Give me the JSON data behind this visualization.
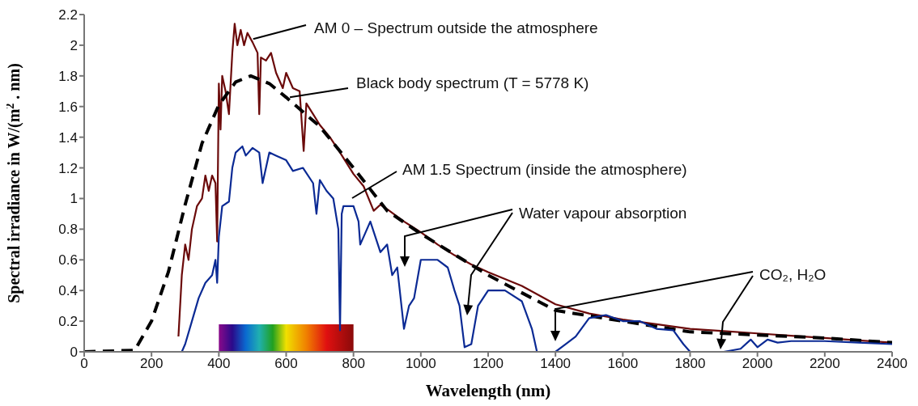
{
  "chart_data": {
    "type": "line",
    "xlabel": "Wavelength (nm)",
    "ylabel": "Spectral irradiance in W/(m$^{2}$ . nm)",
    "xlim": [
      0,
      2400
    ],
    "xticks": [
      0,
      200,
      400,
      600,
      800,
      1000,
      1200,
      1400,
      1600,
      1800,
      2000,
      2200,
      2400
    ],
    "ylim": [
      0,
      2.2
    ],
    "yticks": [
      0,
      0.2,
      0.4,
      0.6,
      0.8,
      1,
      1.2,
      1.4,
      1.6,
      1.8,
      2,
      2.2
    ],
    "series": [
      {
        "color": "#6b0a0a",
        "line_style": "solid",
        "x": [
          280,
          290,
          300,
          310,
          320,
          335,
          350,
          360,
          370,
          380,
          390,
          395,
          400,
          405,
          410,
          420,
          430,
          440,
          447,
          455,
          465,
          475,
          485,
          500,
          515,
          520,
          525,
          540,
          555,
          570,
          590,
          600,
          620,
          640,
          652,
          660,
          680,
          700,
          730,
          760,
          800,
          830,
          860,
          880,
          900,
          950,
          1000,
          1050,
          1100,
          1150,
          1200,
          1300,
          1400,
          1500,
          1600,
          1700,
          1800,
          1900,
          2000,
          2100,
          2200,
          2300,
          2400
        ],
        "values": [
          0.1,
          0.5,
          0.7,
          0.6,
          0.8,
          0.95,
          1.0,
          1.15,
          1.05,
          1.15,
          1.1,
          0.72,
          1.75,
          1.45,
          1.8,
          1.7,
          1.55,
          1.95,
          2.14,
          2.0,
          2.1,
          2.0,
          2.08,
          2.02,
          1.95,
          1.55,
          1.92,
          1.9,
          1.95,
          1.82,
          1.72,
          1.82,
          1.72,
          1.7,
          1.31,
          1.62,
          1.55,
          1.48,
          1.4,
          1.3,
          1.16,
          1.08,
          0.92,
          0.96,
          0.93,
          0.85,
          0.78,
          0.7,
          0.63,
          0.57,
          0.52,
          0.43,
          0.31,
          0.25,
          0.21,
          0.18,
          0.15,
          0.135,
          0.12,
          0.105,
          0.09,
          0.075,
          0.06
        ]
      },
      {
        "color": "#000000",
        "line_style": "dashed",
        "x": [
          0,
          150,
          200,
          250,
          300,
          350,
          400,
          450,
          495,
          550,
          600,
          700,
          800,
          900,
          1000,
          1200,
          1400,
          1600,
          1800,
          2000,
          2200,
          2400
        ],
        "values": [
          0,
          0.01,
          0.2,
          0.52,
          0.96,
          1.36,
          1.61,
          1.76,
          1.8,
          1.75,
          1.66,
          1.47,
          1.2,
          0.92,
          0.77,
          0.5,
          0.27,
          0.2,
          0.13,
          0.11,
          0.09,
          0.06
        ]
      },
      {
        "color": "#0b2a94",
        "line_style": "solid",
        "x": [
          290,
          300,
          320,
          340,
          360,
          380,
          390,
          395,
          400,
          410,
          430,
          440,
          450,
          470,
          480,
          500,
          520,
          530,
          550,
          570,
          600,
          620,
          650,
          680,
          690,
          700,
          720,
          740,
          755,
          760,
          765,
          770,
          800,
          815,
          820,
          850,
          880,
          900,
          915,
          930,
          950,
          965,
          980,
          1000,
          1050,
          1080,
          1100,
          1115,
          1130,
          1150,
          1170,
          1200,
          1250,
          1300,
          1330,
          1345,
          1400,
          1430,
          1460,
          1500,
          1550,
          1600,
          1650,
          1700,
          1750,
          1780,
          1800,
          1900,
          1950,
          1980,
          2000,
          2030,
          2060,
          2100,
          2200,
          2300,
          2400
        ],
        "values": [
          0,
          0.05,
          0.2,
          0.35,
          0.45,
          0.5,
          0.6,
          0.45,
          0.75,
          0.95,
          0.98,
          1.2,
          1.3,
          1.34,
          1.28,
          1.33,
          1.3,
          1.1,
          1.3,
          1.28,
          1.25,
          1.18,
          1.2,
          1.1,
          0.9,
          1.12,
          1.05,
          1.0,
          0.8,
          0.14,
          0.9,
          0.95,
          0.95,
          0.85,
          0.7,
          0.85,
          0.65,
          0.7,
          0.5,
          0.55,
          0.15,
          0.3,
          0.35,
          0.6,
          0.6,
          0.55,
          0.4,
          0.3,
          0.03,
          0.05,
          0.3,
          0.4,
          0.4,
          0.33,
          0.15,
          0,
          0,
          0.05,
          0.1,
          0.22,
          0.24,
          0.2,
          0.2,
          0.15,
          0.14,
          0.05,
          0,
          0,
          0.02,
          0.08,
          0.03,
          0.08,
          0.06,
          0.07,
          0.07,
          0.06,
          0.05
        ]
      }
    ],
    "bands": [
      {
        "axis": "x",
        "from": 400,
        "to": 800
      }
    ],
    "annotations": [
      {
        "text": "AM 0 – Spectrum outside the atmosphere",
        "x": 502,
        "y": 2.04
      },
      {
        "text": "Black body spectrum (T = 5778 K)",
        "x": 611,
        "y": 1.66
      },
      "AM 1.5 Spectrum (inside the atmosphere)",
      "Water vapour absorption",
      "CO₂, H₂O"
    ]
  }
}
